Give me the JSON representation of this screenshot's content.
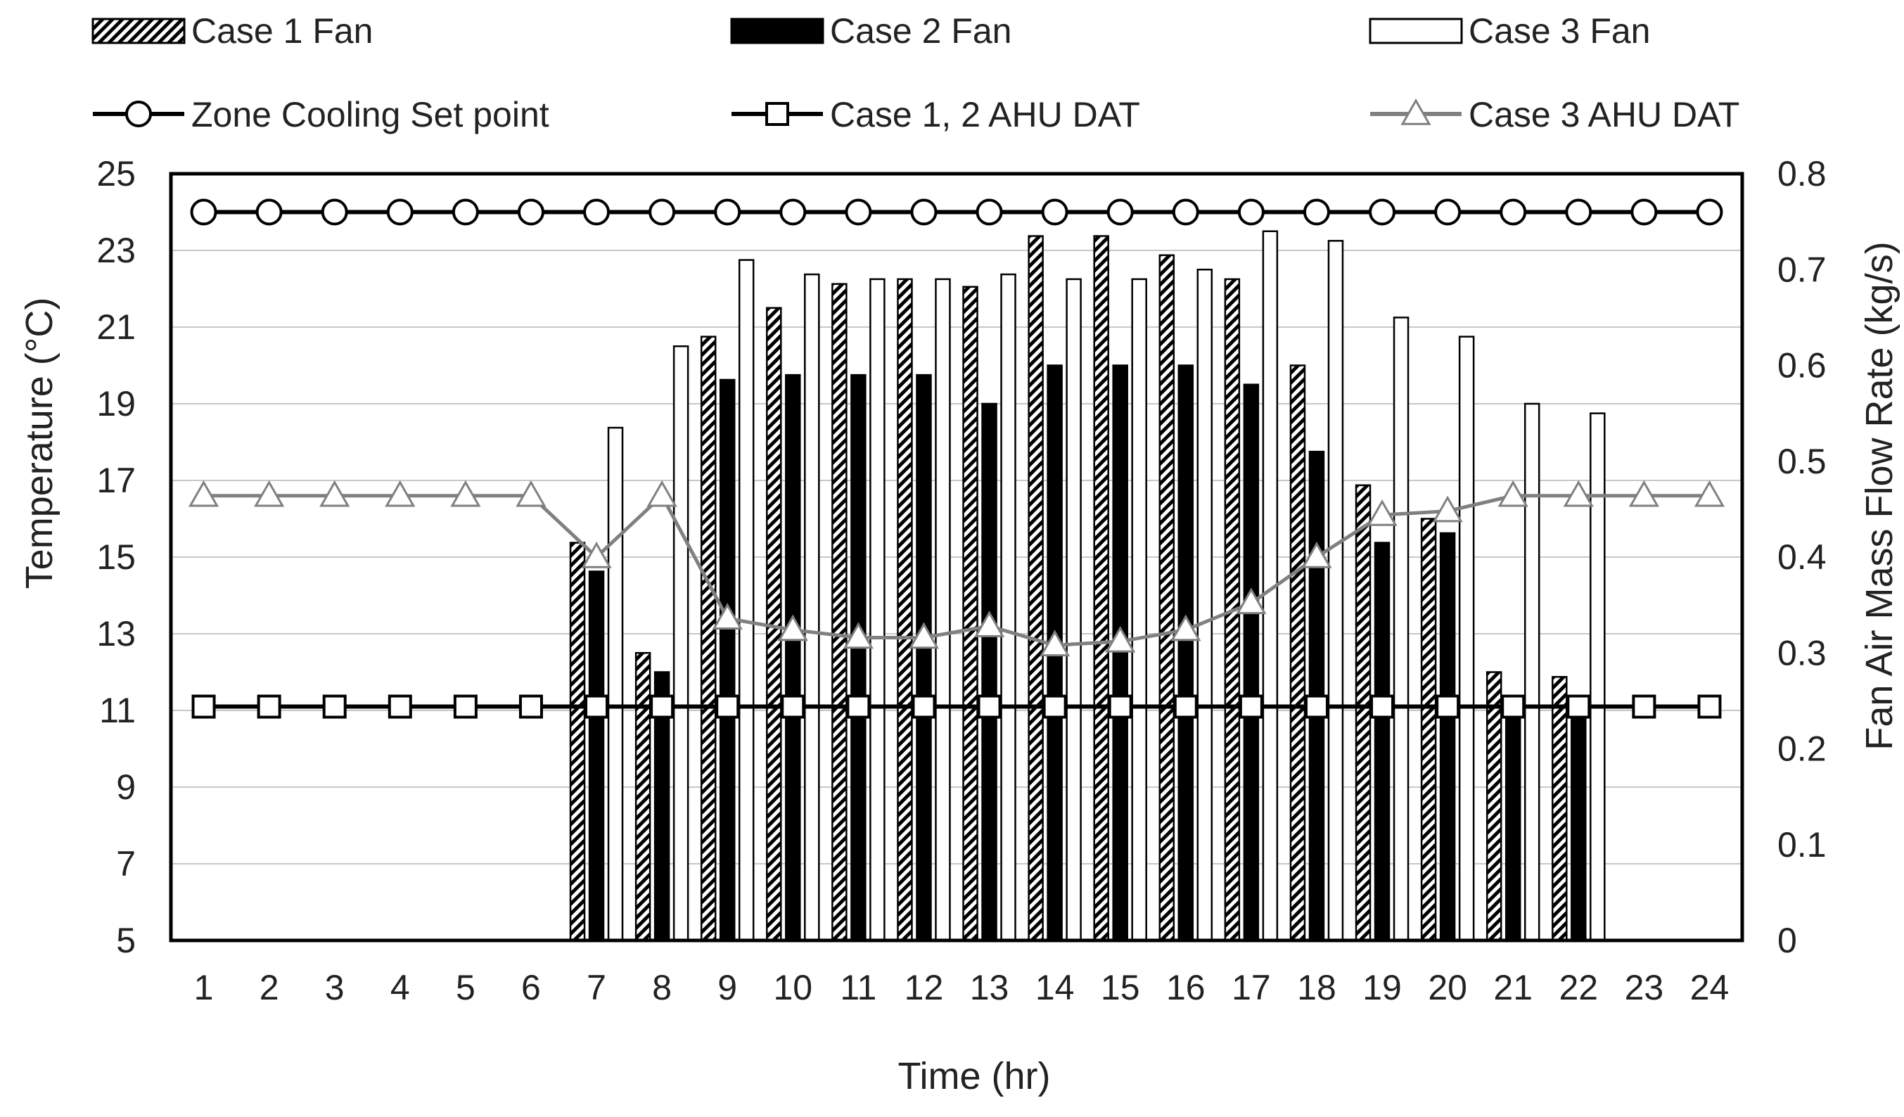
{
  "chart_data": {
    "type": "bar",
    "title": "",
    "xlabel": "Time (hr)",
    "ylabel": "Temperature (°C)",
    "y2label": "Fan Air Mass Flow Rate (kg/s)",
    "categories": [
      "1",
      "2",
      "3",
      "4",
      "5",
      "6",
      "7",
      "8",
      "9",
      "10",
      "11",
      "12",
      "13",
      "14",
      "15",
      "16",
      "17",
      "18",
      "19",
      "20",
      "21",
      "22",
      "23",
      "24"
    ],
    "ylim": [
      5,
      25
    ],
    "yticks": [
      "5",
      "7",
      "9",
      "11",
      "13",
      "15",
      "17",
      "19",
      "21",
      "23",
      "25"
    ],
    "y2lim": [
      0,
      0.8
    ],
    "y2ticks": [
      "0",
      "0.1",
      "0.2",
      "0.3",
      "0.4",
      "0.5",
      "0.6",
      "0.7",
      "0.8"
    ],
    "grid": true,
    "legend_position": "top",
    "bar_series": [
      {
        "name": "Case 1 Fan",
        "axis": "right",
        "style": "hatched",
        "values": [
          0,
          0,
          0,
          0,
          0,
          0,
          0.415,
          0.3,
          0.63,
          0.66,
          0.685,
          0.69,
          0.682,
          0.735,
          0.735,
          0.715,
          0.69,
          0.6,
          0.475,
          0.44,
          0.28,
          0.275,
          0,
          0
        ]
      },
      {
        "name": "Case 2 Fan",
        "axis": "right",
        "style": "solid",
        "color": "#000000",
        "values": [
          0,
          0,
          0,
          0,
          0,
          0,
          0.385,
          0.28,
          0.585,
          0.59,
          0.59,
          0.59,
          0.56,
          0.6,
          0.6,
          0.6,
          0.58,
          0.51,
          0.415,
          0.425,
          0.255,
          0.245,
          0,
          0
        ]
      },
      {
        "name": "Case 3 Fan",
        "axis": "right",
        "style": "outline",
        "color": "#ffffff",
        "values": [
          0,
          0,
          0,
          0,
          0,
          0,
          0.535,
          0.62,
          0.71,
          0.695,
          0.69,
          0.69,
          0.695,
          0.69,
          0.69,
          0.7,
          0.74,
          0.73,
          0.65,
          0.63,
          0.56,
          0.55,
          0,
          0
        ]
      }
    ],
    "line_series": [
      {
        "name": "Zone Cooling Set point",
        "axis": "left",
        "marker": "circle",
        "color": "#000000",
        "values": [
          24,
          24,
          24,
          24,
          24,
          24,
          24,
          24,
          24,
          24,
          24,
          24,
          24,
          24,
          24,
          24,
          24,
          24,
          24,
          24,
          24,
          24,
          24,
          24
        ]
      },
      {
        "name": "Case 1, 2 AHU DAT",
        "axis": "left",
        "marker": "square",
        "color": "#000000",
        "values": [
          11.1,
          11.1,
          11.1,
          11.1,
          11.1,
          11.1,
          11.1,
          11.1,
          11.1,
          11.1,
          11.1,
          11.1,
          11.1,
          11.1,
          11.1,
          11.1,
          11.1,
          11.1,
          11.1,
          11.1,
          11.1,
          11.1,
          11.1,
          11.1
        ]
      },
      {
        "name": "Case 3 AHU DAT",
        "axis": "left",
        "marker": "triangle",
        "color": "#808080",
        "values": [
          16.6,
          16.6,
          16.6,
          16.6,
          16.6,
          16.6,
          15.0,
          16.6,
          13.4,
          13.1,
          12.9,
          12.9,
          13.2,
          12.7,
          12.8,
          13.1,
          13.8,
          15.0,
          16.1,
          16.2,
          16.6,
          16.6,
          16.6,
          16.6
        ]
      }
    ]
  }
}
